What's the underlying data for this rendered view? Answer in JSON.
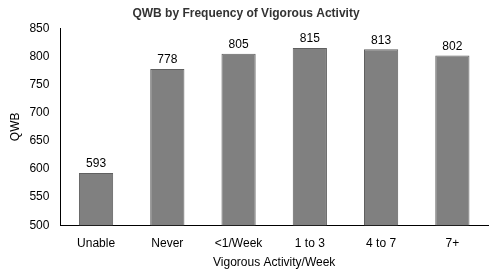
{
  "chart_data": {
    "type": "bar",
    "title": "QWB by Frequency of Vigorous Activity",
    "x_label": "Vigorous Activity/Week",
    "y_label": "QWB",
    "categories": [
      "Unable",
      "Never",
      "<1/Week",
      "1 to 3",
      "4 to 7",
      "7+"
    ],
    "values": [
      593,
      778,
      805,
      815,
      813,
      802
    ],
    "color": "#808080",
    "ylim": [
      500,
      850
    ],
    "yticks": [
      500,
      550,
      600,
      650,
      700,
      750,
      800,
      850
    ],
    "grid": false,
    "data_labels": true
  }
}
